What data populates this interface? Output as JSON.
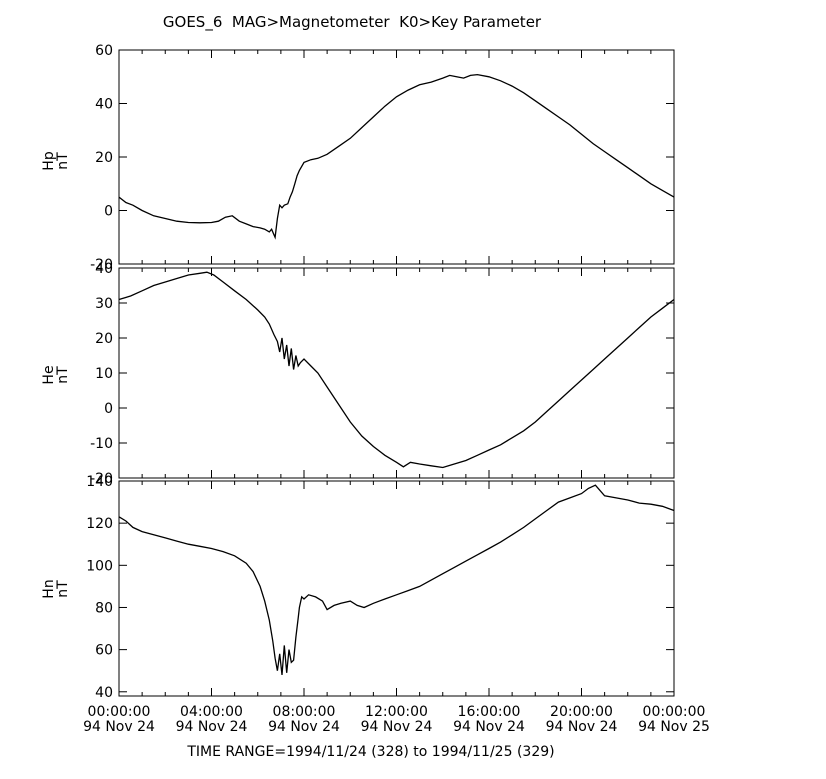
{
  "title": "GOES_6  MAG>Magnetometer  K0>Key Parameter",
  "time_range": "TIME RANGE=1994/11/24 (328) to 1994/11/25 (329)",
  "x_ticks": [
    {
      "hour": 0,
      "time": "00:00:00",
      "date": "94 Nov 24"
    },
    {
      "hour": 4,
      "time": "04:00:00",
      "date": "94 Nov 24"
    },
    {
      "hour": 8,
      "time": "08:00:00",
      "date": "94 Nov 24"
    },
    {
      "hour": 12,
      "time": "12:00:00",
      "date": "94 Nov 24"
    },
    {
      "hour": 16,
      "time": "16:00:00",
      "date": "94 Nov 24"
    },
    {
      "hour": 20,
      "time": "20:00:00",
      "date": "94 Nov 24"
    },
    {
      "hour": 24,
      "time": "00:00:00",
      "date": "94 Nov 25"
    }
  ],
  "chart_data": [
    {
      "type": "line",
      "ylabel": "Hp",
      "yunit": "nT",
      "ylim": [
        -20,
        60
      ],
      "yticks": [
        -20,
        0,
        20,
        40,
        60
      ],
      "xlim": [
        0,
        24
      ],
      "series": [
        {
          "x": [
            0,
            0.3,
            0.6,
            1,
            1.5,
            2,
            2.5,
            3,
            3.5,
            4,
            4.3,
            4.6,
            4.9,
            5.2,
            5.5,
            5.8,
            6.1,
            6.3,
            6.5,
            6.6,
            6.7,
            6.75,
            6.85,
            6.95,
            7.05,
            7.15,
            7.3,
            7.4,
            7.5,
            7.6,
            7.7,
            7.8,
            8,
            8.3,
            8.6,
            9,
            9.5,
            10,
            10.5,
            11,
            11.5,
            12,
            12.5,
            13,
            13.5,
            14,
            14.3,
            14.6,
            14.9,
            15.2,
            15.5,
            16,
            16.5,
            17,
            17.5,
            18,
            18.5,
            19,
            19.5,
            20,
            20.5,
            21,
            21.5,
            22,
            22.5,
            23,
            23.5,
            24
          ],
          "y": [
            5,
            3,
            2,
            0,
            -2,
            -3,
            -4,
            -4.5,
            -4.6,
            -4.5,
            -4,
            -2.5,
            -2,
            -4,
            -5,
            -6,
            -6.5,
            -7,
            -8,
            -7,
            -9,
            -10,
            -3,
            2,
            1,
            2,
            2.5,
            5,
            7,
            10,
            13,
            15,
            18,
            19,
            19.5,
            21,
            24,
            27,
            31,
            35,
            39,
            42.5,
            45,
            47,
            48,
            49.5,
            50.5,
            50,
            49.5,
            50.5,
            50.8,
            50,
            48.5,
            46.5,
            44,
            41,
            38,
            35,
            32,
            28.5,
            25,
            22,
            19,
            16,
            13,
            10,
            7.5,
            5
          ]
        }
      ]
    },
    {
      "type": "line",
      "ylabel": "He",
      "yunit": "nT",
      "ylim": [
        -20,
        40
      ],
      "yticks": [
        -20,
        -10,
        0,
        10,
        20,
        30,
        40
      ],
      "xlim": [
        0,
        24
      ],
      "series": [
        {
          "x": [
            0,
            0.5,
            1,
            1.5,
            2,
            2.5,
            3,
            3.5,
            3.8,
            4.1,
            4.5,
            5,
            5.5,
            6,
            6.3,
            6.5,
            6.7,
            6.85,
            6.95,
            7.05,
            7.15,
            7.25,
            7.35,
            7.45,
            7.55,
            7.65,
            7.75,
            7.85,
            8,
            8.3,
            8.6,
            9,
            9.5,
            10,
            10.5,
            11,
            11.5,
            12,
            12.3,
            12.6,
            13,
            13.5,
            14,
            14.5,
            15,
            15.5,
            16,
            16.5,
            17,
            17.5,
            18,
            18.5,
            19,
            19.5,
            20,
            20.5,
            21,
            21.5,
            22,
            22.5,
            23,
            23.5,
            24
          ],
          "y": [
            31,
            32,
            33.5,
            35,
            36,
            37,
            38,
            38.5,
            38.8,
            38,
            36,
            33.5,
            31,
            28,
            26,
            24,
            21,
            19,
            16,
            20,
            14,
            18,
            12,
            17,
            11,
            15,
            12,
            13,
            14,
            12,
            10,
            6,
            1,
            -4,
            -8,
            -11,
            -13.5,
            -15.5,
            -16.8,
            -15.5,
            -16,
            -16.5,
            -17,
            -16,
            -15,
            -13.5,
            -12,
            -10.5,
            -8.5,
            -6.5,
            -4,
            -1,
            2,
            5,
            8,
            11,
            14,
            17,
            20,
            23,
            26,
            28.5,
            31
          ]
        }
      ]
    },
    {
      "type": "line",
      "ylabel": "Hn",
      "yunit": "nT",
      "ylim": [
        38,
        140
      ],
      "yticks": [
        40,
        60,
        80,
        100,
        120,
        140
      ],
      "xlim": [
        0,
        24
      ],
      "series": [
        {
          "x": [
            0,
            0.3,
            0.6,
            1,
            1.5,
            2,
            2.5,
            3,
            3.5,
            4,
            4.5,
            5,
            5.5,
            5.8,
            6.1,
            6.3,
            6.5,
            6.65,
            6.75,
            6.85,
            6.95,
            7.05,
            7.15,
            7.25,
            7.35,
            7.45,
            7.55,
            7.65,
            7.75,
            7.8,
            7.9,
            8,
            8.2,
            8.5,
            8.8,
            9,
            9.3,
            9.6,
            10,
            10.3,
            10.6,
            11,
            11.5,
            12,
            12.5,
            13,
            13.5,
            14,
            14.5,
            15,
            15.5,
            16,
            16.5,
            17,
            17.5,
            18,
            18.5,
            19,
            19.5,
            20,
            20.3,
            20.6,
            21,
            21.5,
            22,
            22.5,
            23,
            23.5,
            24
          ],
          "y": [
            123,
            121,
            118,
            116,
            114.5,
            113,
            111.5,
            110,
            109,
            108,
            106.5,
            104.5,
            101,
            97,
            90,
            83,
            74,
            64,
            56,
            50,
            58,
            48,
            62,
            49,
            60,
            54,
            55,
            66,
            75,
            80,
            85,
            84,
            86,
            85,
            83,
            79,
            81,
            82,
            83,
            81,
            80,
            82,
            84,
            86,
            88,
            90,
            93,
            96,
            99,
            102,
            105,
            108,
            111,
            114.5,
            118,
            122,
            126,
            130,
            132,
            134,
            136.5,
            138,
            133,
            132,
            131,
            129.5,
            129,
            128,
            126
          ]
        }
      ]
    }
  ]
}
